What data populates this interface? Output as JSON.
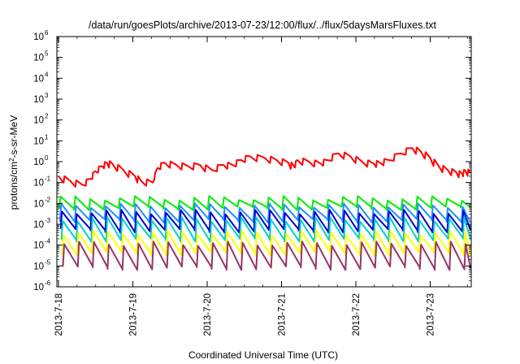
{
  "chart_data": {
    "type": "line",
    "title": "/data/run/goesPlots/archive/2013-07-23/12:00/flux/../flux/5daysMarsFluxes.txt",
    "xlabel": "Coordinated Universal Time (UTC)",
    "ylabel_parts": [
      "protons/cm",
      "2",
      "-s-sr-MeV"
    ],
    "y_scale": "log",
    "ylim": [
      1e-06,
      1000000.0
    ],
    "y_ticks": [
      {
        "exp": -6
      },
      {
        "exp": -5
      },
      {
        "exp": -4
      },
      {
        "exp": -3
      },
      {
        "exp": -2
      },
      {
        "exp": -1
      },
      {
        "exp": 0
      },
      {
        "exp": 1
      },
      {
        "exp": 2
      },
      {
        "exp": 3
      },
      {
        "exp": 4
      },
      {
        "exp": 5
      },
      {
        "exp": 6
      }
    ],
    "x_tick_labels": [
      "2013-7-18",
      "2013-7-19",
      "2013-7-20",
      "2013-7-21",
      "2013-7-22",
      "2013-7-23"
    ],
    "x_range_days": [
      0,
      5.6
    ],
    "grid": false,
    "legend": "none",
    "series": [
      {
        "color": "#ff0000",
        "kind": "trend",
        "points": [
          [
            0.0,
            0.2
          ],
          [
            0.2,
            0.12
          ],
          [
            0.4,
            0.08
          ],
          [
            0.55,
            0.15
          ],
          [
            0.62,
            0.35
          ],
          [
            0.75,
            0.6
          ],
          [
            0.82,
            0.9
          ],
          [
            0.92,
            0.75
          ],
          [
            1.1,
            0.4
          ],
          [
            1.3,
            0.2
          ],
          [
            1.4,
            0.12
          ],
          [
            1.6,
            0.1
          ],
          [
            1.68,
            0.5
          ],
          [
            1.8,
            0.9
          ],
          [
            2.0,
            0.7
          ],
          [
            2.2,
            0.6
          ],
          [
            2.4,
            0.7
          ],
          [
            2.6,
            0.4
          ],
          [
            2.8,
            0.7
          ],
          [
            2.95,
            0.7
          ],
          [
            3.1,
            1.2
          ],
          [
            3.25,
            1.8
          ],
          [
            3.5,
            1.5
          ],
          [
            3.7,
            1.2
          ],
          [
            3.9,
            0.9
          ],
          [
            4.0,
            0.55
          ],
          [
            4.05,
            1.2
          ],
          [
            4.25,
            1.0
          ],
          [
            4.45,
            0.8
          ],
          [
            4.55,
            1.2
          ],
          [
            4.75,
            2.5
          ],
          [
            4.95,
            1.8
          ],
          [
            5.15,
            1.0
          ],
          [
            5.35,
            0.8
          ],
          [
            5.45,
            0.9
          ],
          [
            5.6,
            1.2
          ],
          [
            5.8,
            2.5
          ],
          [
            6.0,
            4.5
          ],
          [
            6.15,
            3.0
          ],
          [
            6.3,
            1.6
          ],
          [
            6.45,
            0.6
          ],
          [
            6.6,
            0.4
          ],
          [
            6.75,
            0.3
          ],
          [
            6.85,
            0.25
          ],
          [
            6.9,
            0.38
          ],
          [
            7.0,
            0.28
          ]
        ]
      },
      {
        "color": "#00ee00",
        "kind": "sawtooth",
        "high": 0.018,
        "low": 0.006
      },
      {
        "color": "#1e90ff",
        "kind": "sawtooth",
        "high": 0.008,
        "low": 0.0015
      },
      {
        "color": "#0000cd",
        "kind": "sawtooth",
        "high": 0.004,
        "low": 0.0005
      },
      {
        "color": "#00ced1",
        "kind": "sawtooth",
        "high": 0.0018,
        "low": 0.00018
      },
      {
        "color": "#ffff00",
        "kind": "sawtooth",
        "high": 0.0004,
        "low": 4e-05
      },
      {
        "color": "#993366",
        "kind": "sawtooth",
        "high": 0.00012,
        "low": 8e-06
      }
    ]
  }
}
